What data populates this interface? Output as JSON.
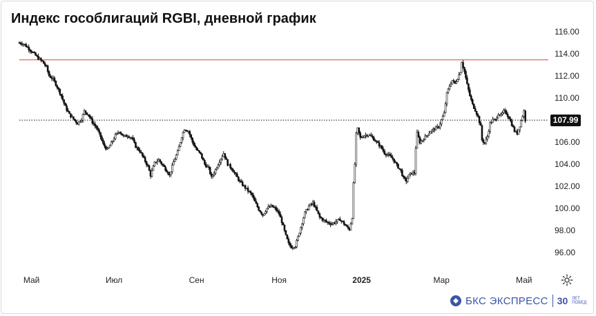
{
  "title": "Индекс гособлигаций RGBI, дневной график",
  "current_price_label": "107.99",
  "brand": {
    "name": "БКС ЭКСПРЕСС",
    "anniversary": "30",
    "anniversary_sub_1": "ЛЕТ",
    "anniversary_sub_2": "ПОБЕД"
  },
  "icons": {
    "settings": "gear-icon",
    "logo": "bks-logo-icon"
  },
  "colors": {
    "resistance_line": "#e03a3a",
    "candles": "#111111",
    "price_line": "#111111"
  },
  "chart_data": {
    "type": "candlestick",
    "title": "Индекс гособлигаций RGBI, дневной график",
    "ylim": [
      95,
      116.5
    ],
    "y_ticks": [
      96.0,
      98.0,
      100.0,
      102.0,
      104.0,
      106.0,
      108.0,
      110.0,
      112.0,
      114.0,
      116.0
    ],
    "y_tick_labels": [
      "96.00",
      "98.00",
      "100.00",
      "102.00",
      "104.00",
      "106.00",
      "108.00",
      "110.00",
      "112.00",
      "114.00",
      "116.00"
    ],
    "x_ticks": [
      {
        "label": "Май",
        "day": 9
      },
      {
        "label": "Июл",
        "day": 70
      },
      {
        "label": "Сен",
        "day": 131
      },
      {
        "label": "Ноя",
        "day": 192
      },
      {
        "label": "2025",
        "day": 253,
        "bold": true
      },
      {
        "label": "Мар",
        "day": 312
      },
      {
        "label": "Май",
        "day": 373
      }
    ],
    "x_range": [
      0,
      390
    ],
    "horizontal_lines": [
      {
        "name": "resistance",
        "value": 113.45,
        "style": "solid",
        "color": "#e03a3a"
      },
      {
        "name": "last-price",
        "value": 107.99,
        "style": "dotted",
        "color": "#111111"
      }
    ],
    "close_points": [
      [
        0,
        115.0
      ],
      [
        3,
        114.9
      ],
      [
        6,
        114.6
      ],
      [
        10,
        114.1
      ],
      [
        14,
        113.6
      ],
      [
        17,
        113.3
      ],
      [
        20,
        112.8
      ],
      [
        22,
        112.0
      ],
      [
        25,
        111.7
      ],
      [
        28,
        111.0
      ],
      [
        31,
        110.2
      ],
      [
        34,
        109.2
      ],
      [
        37,
        108.5
      ],
      [
        40,
        108.1
      ],
      [
        43,
        107.7
      ],
      [
        46,
        108.1
      ],
      [
        48,
        108.8
      ],
      [
        51,
        108.5
      ],
      [
        54,
        107.8
      ],
      [
        57,
        107.3
      ],
      [
        60,
        106.5
      ],
      [
        62,
        105.8
      ],
      [
        65,
        105.3
      ],
      [
        68,
        105.9
      ],
      [
        71,
        106.6
      ],
      [
        74,
        107.0
      ],
      [
        77,
        106.5
      ],
      [
        80,
        106.6
      ],
      [
        83,
        106.4
      ],
      [
        86,
        105.6
      ],
      [
        89,
        105.2
      ],
      [
        92,
        104.5
      ],
      [
        95,
        103.8
      ],
      [
        97,
        103.0
      ],
      [
        100,
        104.1
      ],
      [
        103,
        104.4
      ],
      [
        106,
        103.9
      ],
      [
        109,
        103.4
      ],
      [
        111,
        103.0
      ],
      [
        114,
        104.2
      ],
      [
        117,
        105.1
      ],
      [
        120,
        106.5
      ],
      [
        122,
        107.2
      ],
      [
        125,
        107.0
      ],
      [
        128,
        106.0
      ],
      [
        131,
        105.3
      ],
      [
        134,
        104.9
      ],
      [
        137,
        104.0
      ],
      [
        140,
        103.6
      ],
      [
        142,
        102.8
      ],
      [
        145,
        103.5
      ],
      [
        148,
        104.3
      ],
      [
        151,
        105.0
      ],
      [
        154,
        104.0
      ],
      [
        157,
        103.6
      ],
      [
        160,
        103.0
      ],
      [
        163,
        102.4
      ],
      [
        166,
        102.0
      ],
      [
        169,
        101.6
      ],
      [
        172,
        101.2
      ],
      [
        174,
        100.6
      ],
      [
        177,
        99.9
      ],
      [
        180,
        99.4
      ],
      [
        183,
        100.0
      ],
      [
        186,
        100.2
      ],
      [
        189,
        100.0
      ],
      [
        192,
        99.5
      ],
      [
        194,
        98.8
      ],
      [
        197,
        97.5
      ],
      [
        199,
        96.8
      ],
      [
        201,
        96.5
      ],
      [
        204,
        96.6
      ],
      [
        206,
        97.4
      ],
      [
        208,
        98.3
      ],
      [
        211,
        99.6
      ],
      [
        214,
        100.2
      ],
      [
        217,
        100.5
      ],
      [
        219,
        100.0
      ],
      [
        222,
        99.2
      ],
      [
        225,
        98.9
      ],
      [
        228,
        98.7
      ],
      [
        231,
        98.6
      ],
      [
        234,
        98.8
      ],
      [
        237,
        99.0
      ],
      [
        240,
        98.6
      ],
      [
        242,
        98.3
      ],
      [
        244,
        98.1
      ],
      [
        246,
        99.2
      ],
      [
        247,
        102.2
      ],
      [
        248,
        104.0
      ],
      [
        249,
        106.7
      ],
      [
        250,
        107.2
      ],
      [
        252,
        106.4
      ],
      [
        255,
        106.6
      ],
      [
        258,
        106.7
      ],
      [
        261,
        106.4
      ],
      [
        264,
        106.0
      ],
      [
        267,
        105.6
      ],
      [
        270,
        105.0
      ],
      [
        273,
        104.8
      ],
      [
        276,
        104.5
      ],
      [
        279,
        103.9
      ],
      [
        282,
        103.4
      ],
      [
        284,
        102.7
      ],
      [
        286,
        102.5
      ],
      [
        288,
        103.0
      ],
      [
        290,
        103.2
      ],
      [
        292,
        103.2
      ],
      [
        293,
        105.5
      ],
      [
        294,
        106.8
      ],
      [
        296,
        106.0
      ],
      [
        298,
        106.2
      ],
      [
        301,
        106.6
      ],
      [
        304,
        107.0
      ],
      [
        307,
        107.2
      ],
      [
        310,
        107.4
      ],
      [
        312,
        108.0
      ],
      [
        314,
        108.6
      ],
      [
        316,
        110.4
      ],
      [
        318,
        111.1
      ],
      [
        320,
        111.6
      ],
      [
        322,
        111.3
      ],
      [
        324,
        111.8
      ],
      [
        326,
        112.4
      ],
      [
        327,
        113.3
      ],
      [
        329,
        112.4
      ],
      [
        331,
        111.2
      ],
      [
        333,
        110.2
      ],
      [
        335,
        109.4
      ],
      [
        337,
        108.9
      ],
      [
        339,
        108.3
      ],
      [
        341,
        107.4
      ],
      [
        342,
        106.2
      ],
      [
        344,
        105.9
      ],
      [
        346,
        106.5
      ],
      [
        348,
        107.7
      ],
      [
        350,
        108.0
      ],
      [
        352,
        108.0
      ],
      [
        354,
        108.6
      ],
      [
        356,
        108.4
      ],
      [
        358,
        108.8
      ],
      [
        360,
        108.6
      ],
      [
        362,
        108.2
      ],
      [
        364,
        107.6
      ],
      [
        366,
        107.0
      ],
      [
        368,
        106.8
      ],
      [
        370,
        107.5
      ],
      [
        372,
        108.4
      ],
      [
        373,
        108.8
      ],
      [
        374,
        107.99
      ]
    ]
  }
}
